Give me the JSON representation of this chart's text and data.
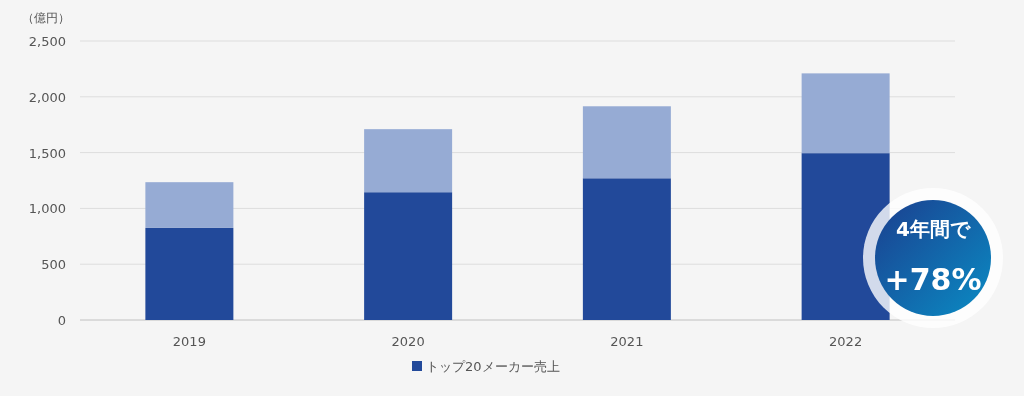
{
  "chart_data": {
    "type": "bar",
    "stacked": true,
    "ylabel": "（億円）",
    "categories": [
      "2019",
      "2020",
      "2021",
      "2022"
    ],
    "series": [
      {
        "name": "トップ20メーカー売上",
        "color": "#22499a",
        "values": [
          825,
          1145,
          1270,
          1495
        ]
      },
      {
        "color": "#96abd4",
        "values": [
          410,
          565,
          645,
          715
        ]
      }
    ],
    "ylim": [
      0,
      2500
    ],
    "yticks": [
      0,
      500,
      {
        "value": 1000,
        "label": "1,000"
      },
      {
        "value": 1500,
        "label": "1,500"
      },
      {
        "value": 2000,
        "label": "2,000"
      },
      {
        "value": 2500,
        "label": "2,500"
      }
    ],
    "grid": "y",
    "legend": "bottom",
    "annotations": [
      "4年間で",
      "+78%"
    ]
  }
}
